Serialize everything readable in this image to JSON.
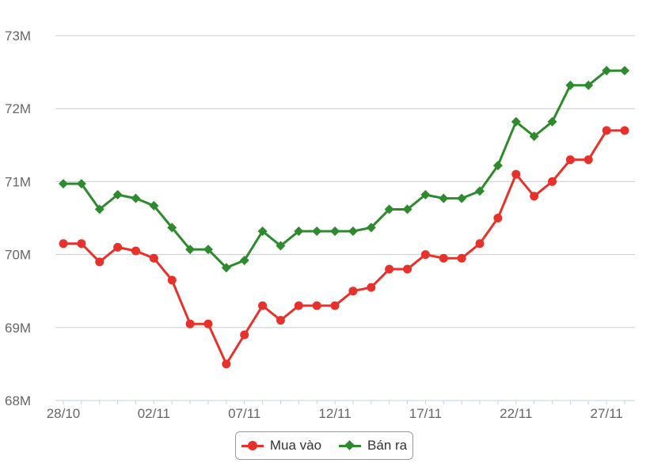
{
  "chart_data": {
    "type": "line",
    "title": "",
    "xlabel": "",
    "ylabel": "",
    "ylim": [
      68,
      73
    ],
    "yticks": [
      {
        "value": 68,
        "label": "68M"
      },
      {
        "value": 69,
        "label": "69M"
      },
      {
        "value": 70,
        "label": "70M"
      },
      {
        "value": 71,
        "label": "71M"
      },
      {
        "value": 72,
        "label": "72M"
      },
      {
        "value": 73,
        "label": "73M"
      }
    ],
    "xtick_labels": [
      {
        "index": 0,
        "label": "28/10"
      },
      {
        "index": 5,
        "label": "02/11"
      },
      {
        "index": 10,
        "label": "07/11"
      },
      {
        "index": 15,
        "label": "12/11"
      },
      {
        "index": 20,
        "label": "17/11"
      },
      {
        "index": 25,
        "label": "22/11"
      },
      {
        "index": 30,
        "label": "27/11"
      }
    ],
    "point_count": 32,
    "series": [
      {
        "name": "Mua vào",
        "color": "#e8312b",
        "marker": "circle",
        "values": [
          70.15,
          70.15,
          69.9,
          70.1,
          70.05,
          69.95,
          69.65,
          69.05,
          69.05,
          68.5,
          68.9,
          69.3,
          69.1,
          69.3,
          69.3,
          69.3,
          69.5,
          69.55,
          69.8,
          69.8,
          70.0,
          69.95,
          69.95,
          70.15,
          70.5,
          71.1,
          70.8,
          71.0,
          71.3,
          71.3,
          71.7,
          71.7
        ]
      },
      {
        "name": "Bán ra",
        "color": "#2d8a2d",
        "marker": "diamond",
        "values": [
          70.97,
          70.97,
          70.62,
          70.82,
          70.77,
          70.67,
          70.37,
          70.07,
          70.07,
          69.82,
          69.92,
          70.32,
          70.12,
          70.32,
          70.32,
          70.32,
          70.32,
          70.37,
          70.62,
          70.62,
          70.82,
          70.77,
          70.77,
          70.87,
          71.22,
          71.82,
          71.62,
          71.82,
          72.32,
          72.32,
          72.52,
          72.52
        ]
      }
    ],
    "grid": true,
    "legend_position": "bottom"
  }
}
